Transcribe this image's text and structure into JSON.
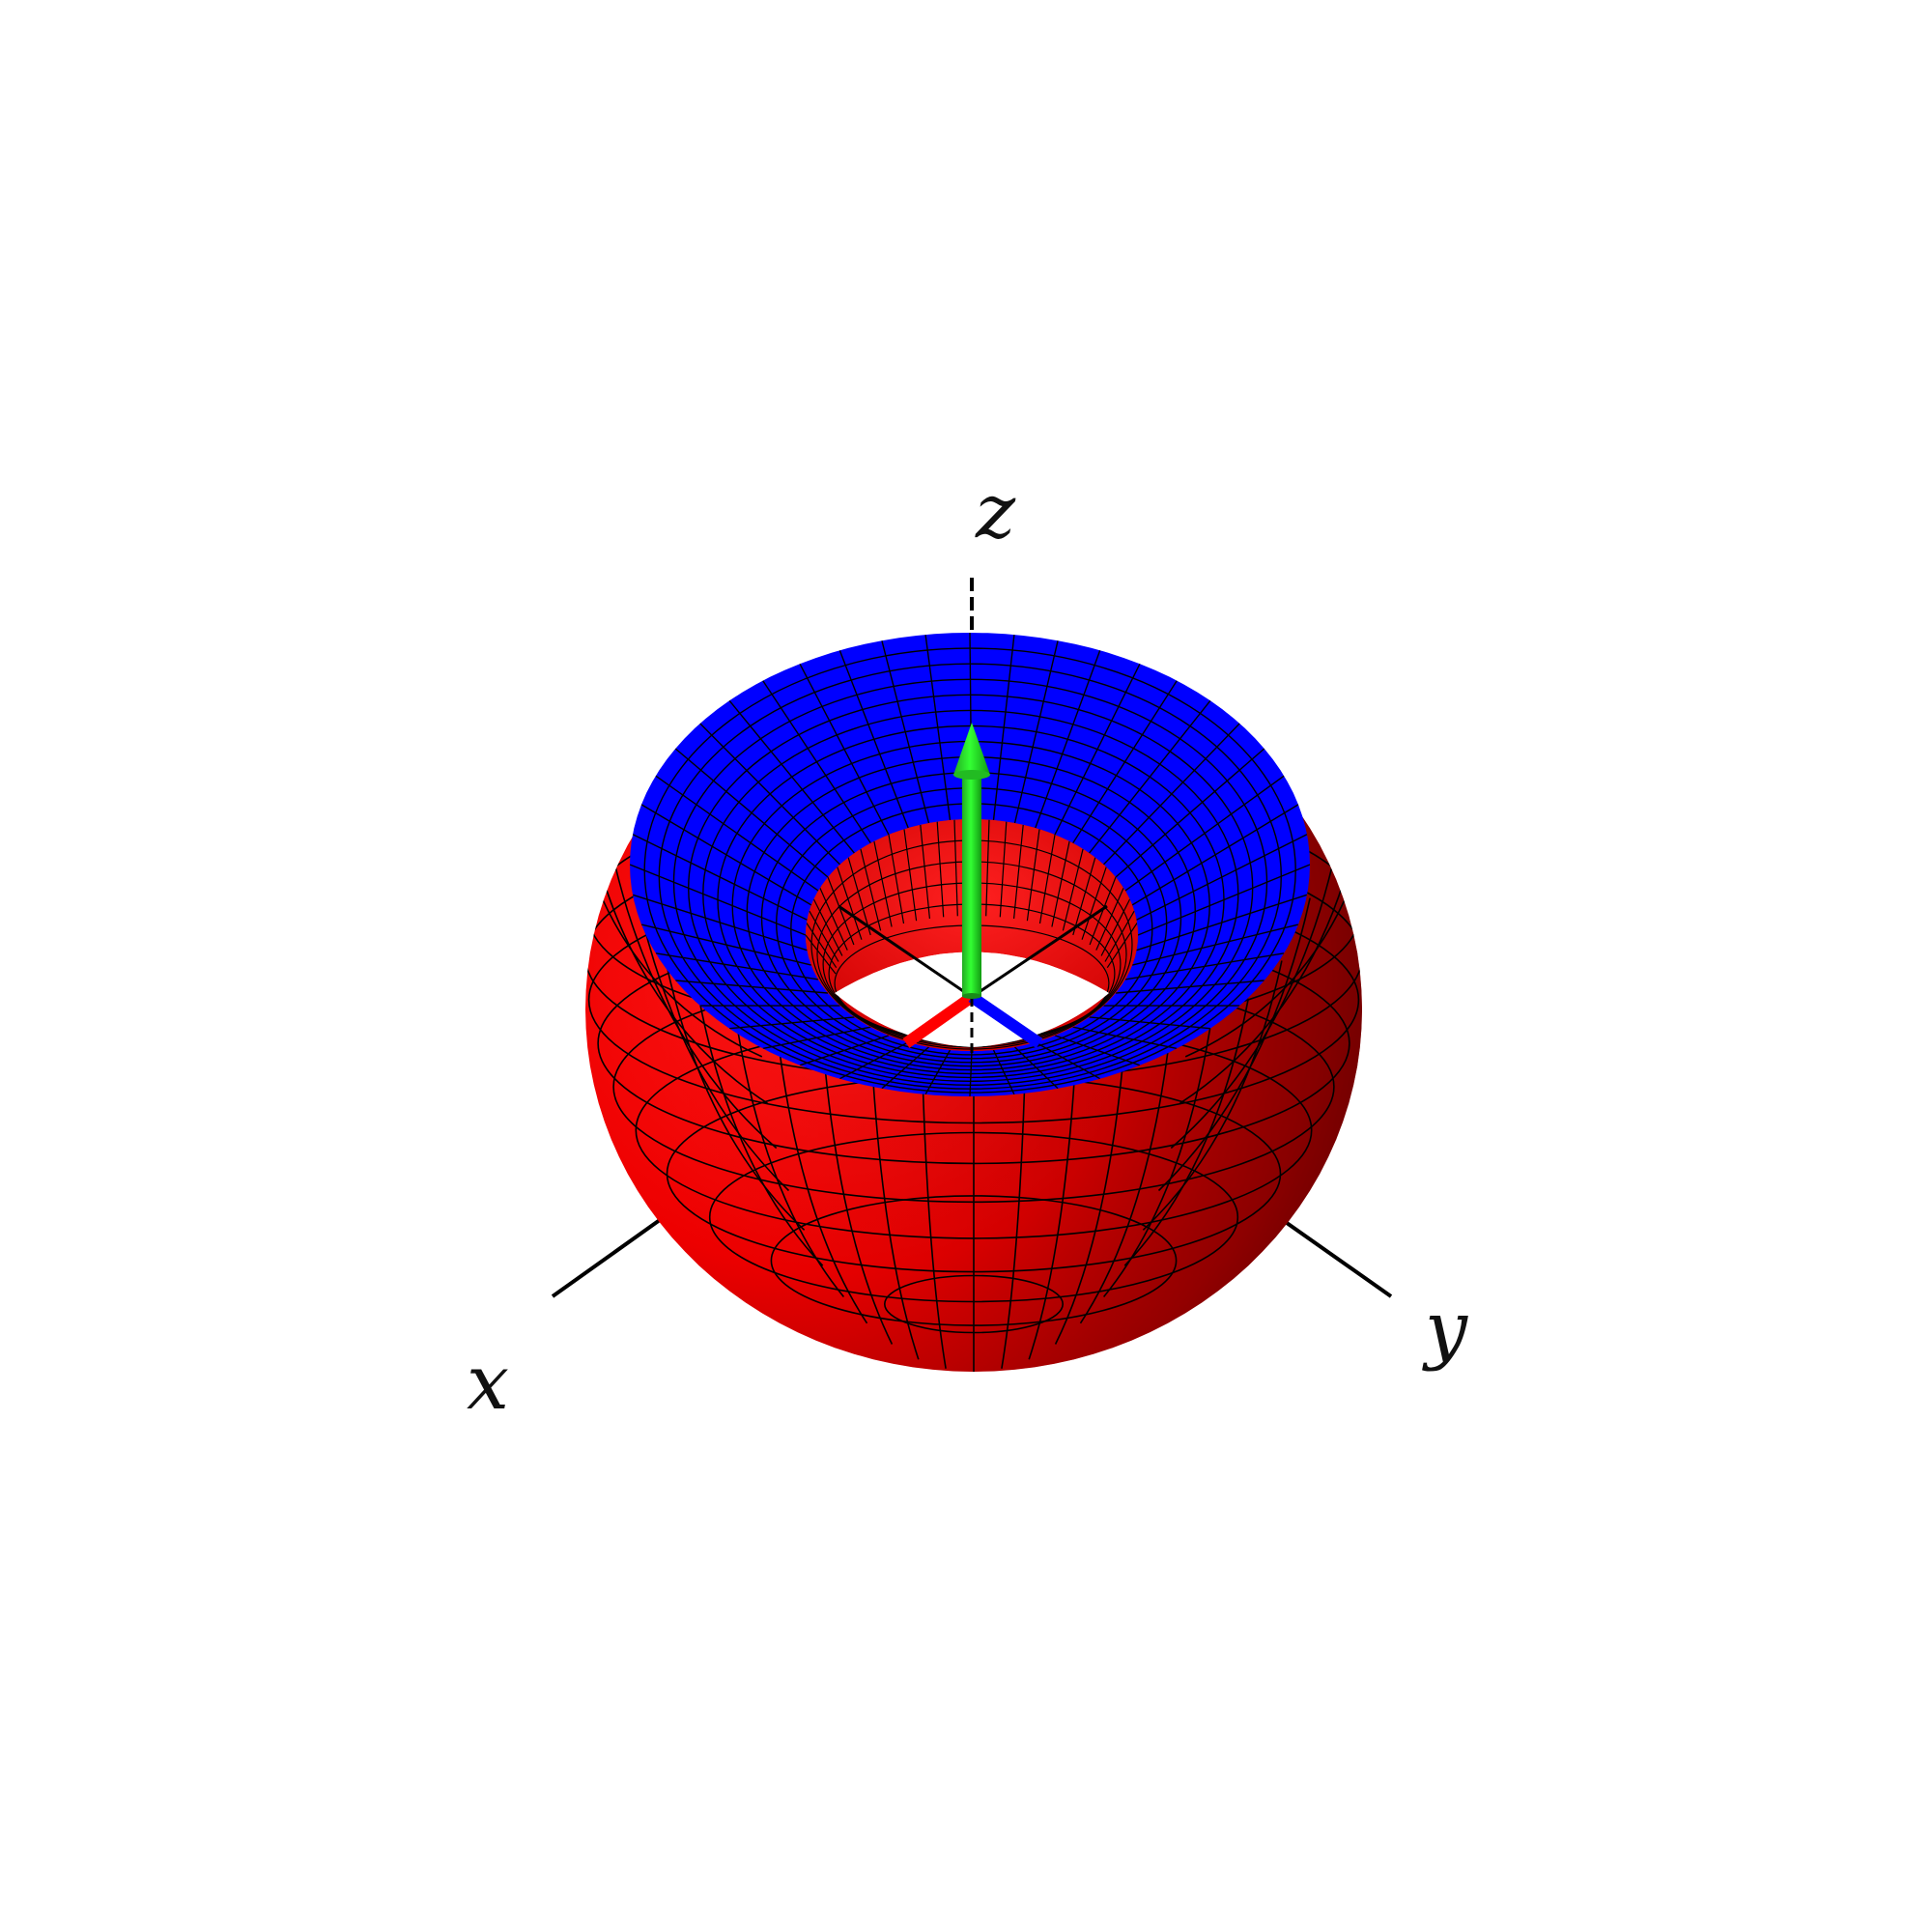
{
  "diagram": {
    "axis_labels": {
      "x": "x",
      "y": "y",
      "z": "z"
    },
    "colors": {
      "background": "#ffffff",
      "outer_surface": "#ff0000",
      "outer_surface_shadow": "#7a0000",
      "top_cap": "#0000ff",
      "inner_hole": "#ff1a1a",
      "mesh_lines": "#000000",
      "axis_lines": "#000000",
      "arrow": "#22dd22",
      "x_axis_stub": "#ff0000",
      "y_axis_stub": "#0000ff"
    },
    "shape": "torus-like surface with a spherical outer shell and cut top, shown with a vertical arrow along the z axis",
    "icons": {
      "arrow": "arrow-up-icon"
    }
  }
}
